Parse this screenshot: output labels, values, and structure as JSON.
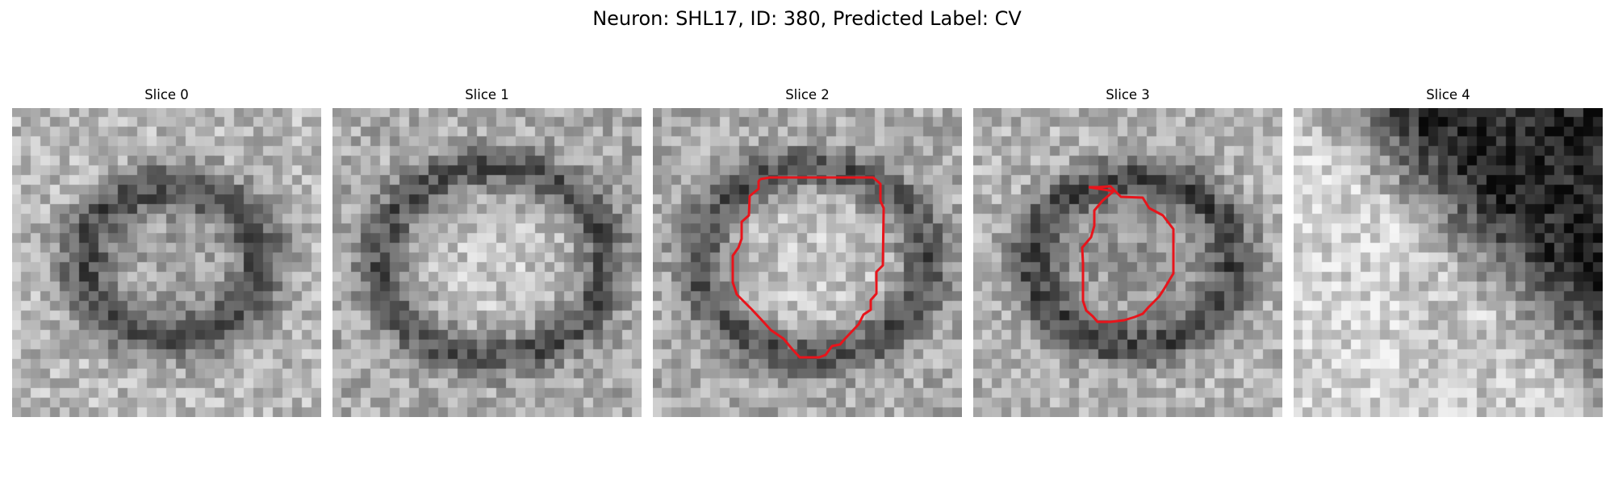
{
  "figure": {
    "title": "Neuron: SHL17, ID: 380, Predicted Label: CV"
  },
  "slices": [
    {
      "title": "Slice 0",
      "outlined": false,
      "seed": 11,
      "variant": "ring-dark"
    },
    {
      "title": "Slice 1",
      "outlined": false,
      "seed": 23,
      "variant": "ring-bright"
    },
    {
      "title": "Slice 2",
      "outlined": true,
      "seed": 37,
      "variant": "ring-bright"
    },
    {
      "title": "Slice 3",
      "outlined": true,
      "seed": 53,
      "variant": "ring-mid"
    },
    {
      "title": "Slice 4",
      "outlined": false,
      "seed": 71,
      "variant": "diagonal"
    }
  ],
  "colors": {
    "outline": "#e8141b"
  }
}
